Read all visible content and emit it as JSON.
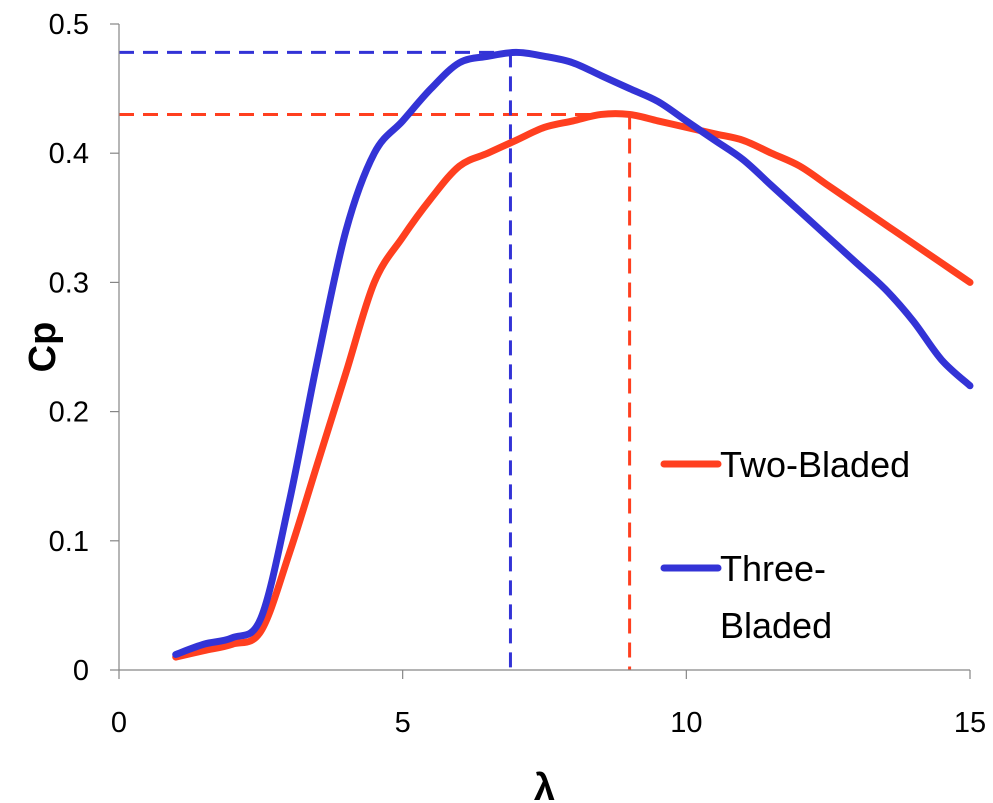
{
  "chart_data": {
    "type": "line",
    "xlabel": "λ",
    "ylabel": "Cp",
    "xlim": [
      0,
      15
    ],
    "ylim": [
      0,
      0.5
    ],
    "xticks": [
      0,
      5,
      10,
      15
    ],
    "yticks": [
      0,
      0.1,
      0.2,
      0.3,
      0.4,
      0.5
    ],
    "x_tick_labels": [
      "0",
      "5",
      "10",
      "15"
    ],
    "y_tick_labels": [
      "0",
      "0.1",
      "0.2",
      "0.3",
      "0.4",
      "0.5"
    ],
    "grid": false,
    "legend_position": "right",
    "series": [
      {
        "name": "Two-Bladed",
        "color": "#ff3f1f",
        "points": [
          [
            1.0,
            0.01
          ],
          [
            1.5,
            0.015
          ],
          [
            2.0,
            0.02
          ],
          [
            2.5,
            0.03
          ],
          [
            3.0,
            0.09
          ],
          [
            3.5,
            0.16
          ],
          [
            4.0,
            0.23
          ],
          [
            4.5,
            0.3
          ],
          [
            5.0,
            0.335
          ],
          [
            5.5,
            0.365
          ],
          [
            6.0,
            0.39
          ],
          [
            6.5,
            0.4
          ],
          [
            7.0,
            0.41
          ],
          [
            7.5,
            0.42
          ],
          [
            8.0,
            0.425
          ],
          [
            8.5,
            0.43
          ],
          [
            9.0,
            0.43
          ],
          [
            9.5,
            0.425
          ],
          [
            10.0,
            0.42
          ],
          [
            10.5,
            0.415
          ],
          [
            11.0,
            0.41
          ],
          [
            11.5,
            0.4
          ],
          [
            12.0,
            0.39
          ],
          [
            12.5,
            0.375
          ],
          [
            13.0,
            0.36
          ],
          [
            13.5,
            0.345
          ],
          [
            14.0,
            0.33
          ],
          [
            14.5,
            0.315
          ],
          [
            15.0,
            0.3
          ]
        ],
        "peak": [
          9.0,
          0.43
        ]
      },
      {
        "name": "Three-Bladed",
        "legend_lines": [
          "Three-",
          "Bladed"
        ],
        "color": "#3333d6",
        "points": [
          [
            1.0,
            0.012
          ],
          [
            1.5,
            0.02
          ],
          [
            2.0,
            0.025
          ],
          [
            2.5,
            0.04
          ],
          [
            3.0,
            0.13
          ],
          [
            3.5,
            0.24
          ],
          [
            4.0,
            0.34
          ],
          [
            4.5,
            0.4
          ],
          [
            5.0,
            0.425
          ],
          [
            5.5,
            0.45
          ],
          [
            6.0,
            0.47
          ],
          [
            6.5,
            0.475
          ],
          [
            7.0,
            0.478
          ],
          [
            7.5,
            0.475
          ],
          [
            8.0,
            0.47
          ],
          [
            8.5,
            0.46
          ],
          [
            9.0,
            0.45
          ],
          [
            9.5,
            0.44
          ],
          [
            10.0,
            0.425
          ],
          [
            10.5,
            0.41
          ],
          [
            11.0,
            0.395
          ],
          [
            11.5,
            0.375
          ],
          [
            12.0,
            0.355
          ],
          [
            12.5,
            0.335
          ],
          [
            13.0,
            0.315
          ],
          [
            13.5,
            0.295
          ],
          [
            14.0,
            0.27
          ],
          [
            14.5,
            0.24
          ],
          [
            15.0,
            0.22
          ]
        ],
        "peak": [
          6.9,
          0.478
        ]
      }
    ]
  }
}
